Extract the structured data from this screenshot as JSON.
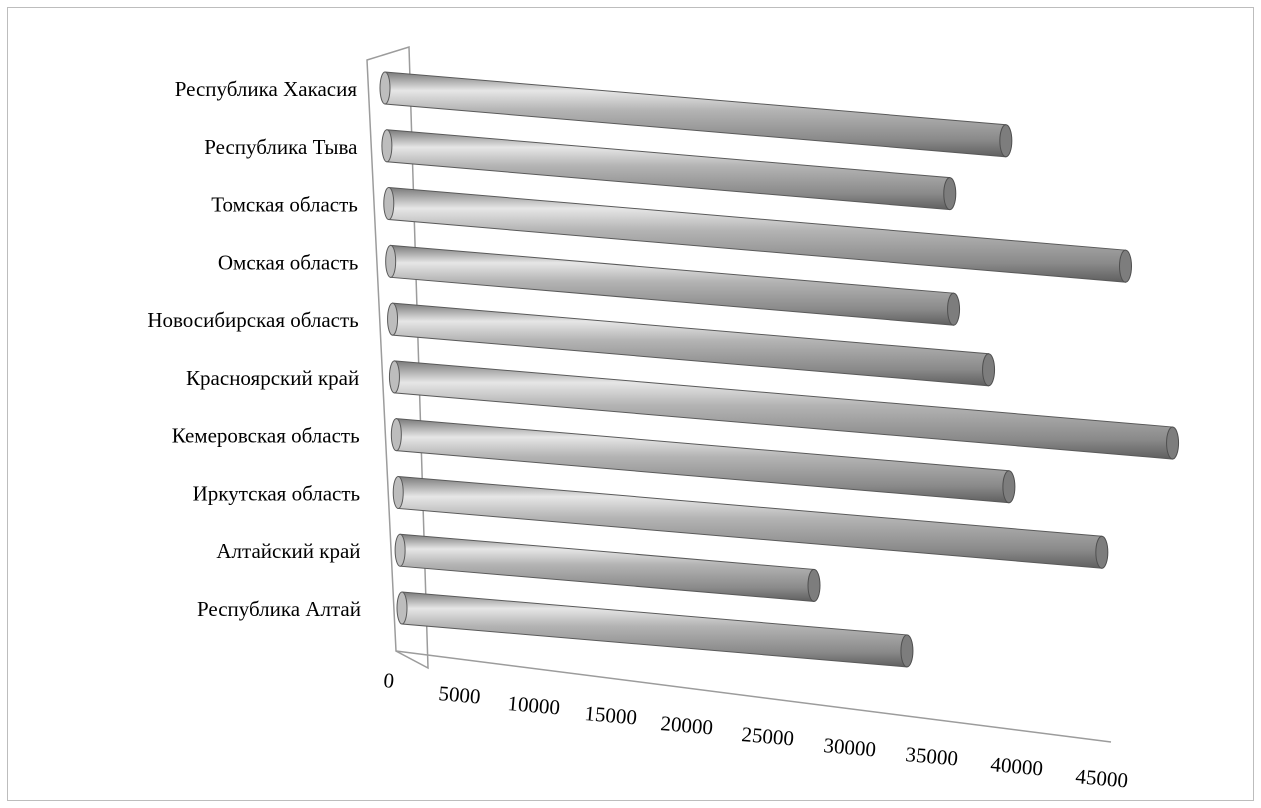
{
  "chart_data": {
    "type": "bar",
    "orientation": "horizontal",
    "style": "3d-cylinder",
    "title": "",
    "xlabel": "",
    "ylabel": "",
    "categories": [
      "Республика Алтай",
      "Алтайский край",
      "Иркутская  область",
      "Кемеровская область",
      "Красноярский край",
      "Новосибирская область",
      "Омская область",
      "Томская область",
      "Республика Тыва",
      "Республика Хакасия"
    ],
    "values": [
      30500,
      25000,
      42500,
      37000,
      47000,
      36000,
      34000,
      44500,
      34000,
      37500
    ],
    "xlim": [
      0,
      45000
    ],
    "xticks": [
      "0",
      "5000",
      "10000",
      "15000",
      "20000",
      "25000",
      "30000",
      "35000",
      "40000",
      "45000"
    ],
    "legend": "none",
    "grid": false,
    "colors": {
      "bar": "#9a9a9a",
      "bar_light": "#f2f2f2",
      "bar_dark": "#6e6e6e",
      "axis": "#9c9c9c"
    }
  }
}
